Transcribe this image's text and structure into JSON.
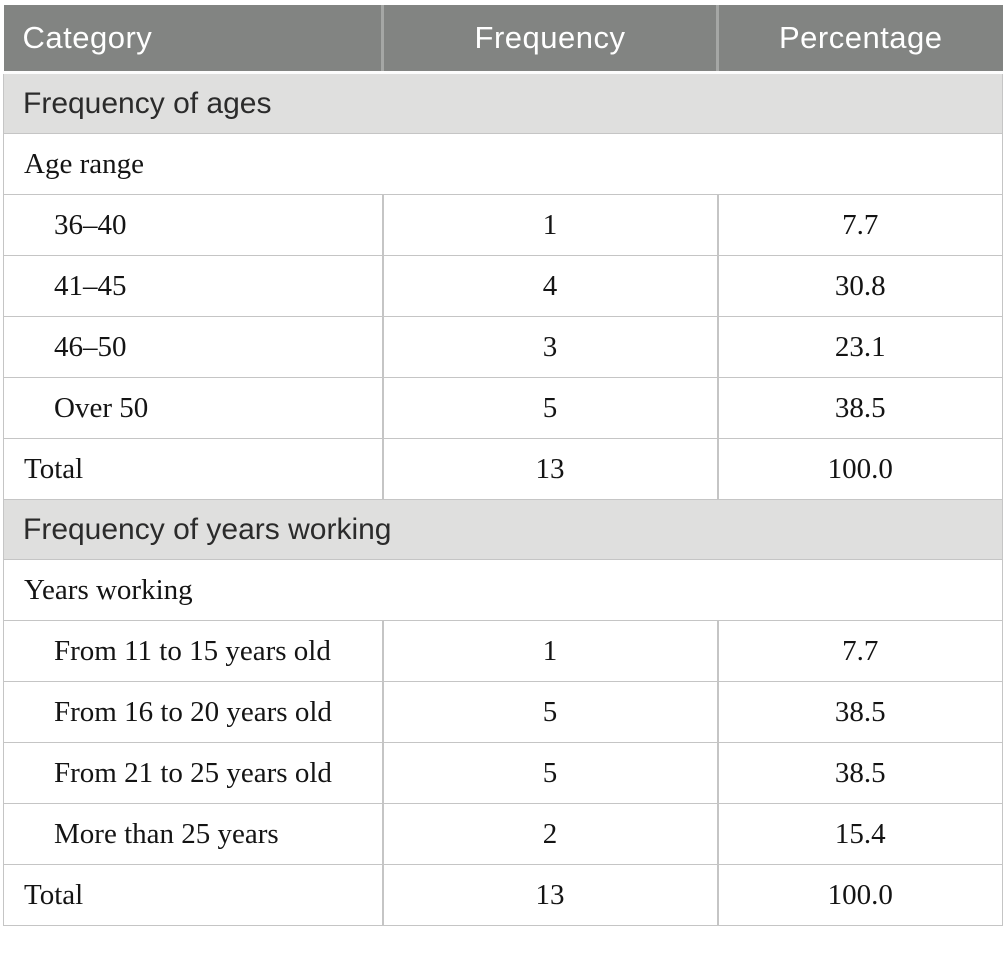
{
  "table": {
    "columns": [
      {
        "label": "Category"
      },
      {
        "label": "Frequency"
      },
      {
        "label": "Percentage"
      }
    ],
    "sections": [
      {
        "title": "Frequency of ages",
        "subtitle": "Age range",
        "rows": [
          {
            "label": "36–40",
            "frequency": "1",
            "percentage": "7.7"
          },
          {
            "label": "41–45",
            "frequency": "4",
            "percentage": "30.8"
          },
          {
            "label": "46–50",
            "frequency": "3",
            "percentage": "23.1"
          },
          {
            "label": "Over 50",
            "frequency": "5",
            "percentage": "38.5"
          }
        ],
        "total": {
          "label": "Total",
          "frequency": "13",
          "percentage": "100.0"
        }
      },
      {
        "title": "Frequency of years working",
        "subtitle": "Years working",
        "rows": [
          {
            "label": "From 11 to 15 years old",
            "frequency": "1",
            "percentage": "7.7"
          },
          {
            "label": "From 16 to 20 years old",
            "frequency": "5",
            "percentage": "38.5"
          },
          {
            "label": "From 21 to 25 years old",
            "frequency": "5",
            "percentage": "38.5"
          },
          {
            "label": "More than 25 years",
            "frequency": "2",
            "percentage": "15.4"
          }
        ],
        "total": {
          "label": "Total",
          "frequency": "13",
          "percentage": "100.0"
        }
      }
    ]
  },
  "colors": {
    "header_bg": "#828482",
    "header_text": "#ffffff",
    "section_bg": "#dfdfde",
    "section_text": "#2b2b2b",
    "body_text": "#141414",
    "border": "#c5c5c5"
  }
}
